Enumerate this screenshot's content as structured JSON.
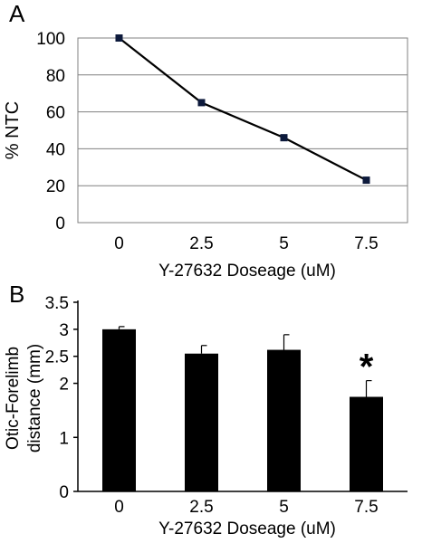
{
  "colors": {
    "ink": "#000000",
    "grid": "#808080",
    "marker": "#0d1a3c",
    "bar": "#000000"
  },
  "chart_data": [
    {
      "panel_label": "A",
      "type": "line",
      "categories": [
        "0",
        "2.5",
        "5",
        "7.5"
      ],
      "values": [
        100,
        65,
        46,
        23
      ],
      "ylabel": "% NTC",
      "xlabel": "Y-27632 Doseage (uM)",
      "ylim": [
        0,
        100
      ],
      "yticks": [
        "0",
        "20",
        "40",
        "60",
        "80",
        "100"
      ],
      "grid": true
    },
    {
      "panel_label": "B",
      "type": "bar",
      "categories": [
        "0",
        "2.5",
        "5",
        "7.5"
      ],
      "values": [
        3.0,
        2.55,
        2.62,
        1.75
      ],
      "errors": [
        0.05,
        0.15,
        0.28,
        0.3
      ],
      "ylabel_lines": [
        "Otic-Forelimb",
        "distance (mm)"
      ],
      "xlabel": "Y-27632 Doseage (uM)",
      "ylim": [
        0,
        3.5
      ],
      "yticks": [
        "0",
        "1",
        "2",
        "2.5",
        "3",
        "3.5"
      ],
      "annotations": [
        {
          "category": "7.5",
          "text": "*"
        }
      ],
      "grid": false
    }
  ]
}
